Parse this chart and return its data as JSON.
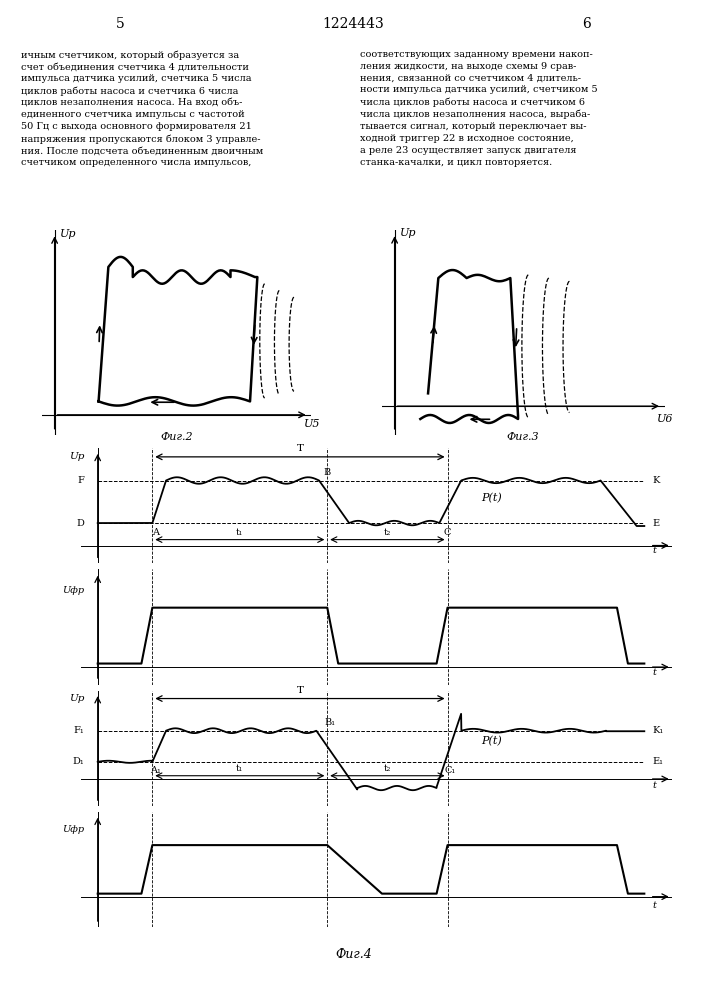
{
  "page_number_left": "5",
  "page_number_right": "6",
  "patent_number": "1224443",
  "text_left": "ичным счетчиком, который образуется за\nсчет объединения счетчика 4 длительности\nимпульса датчика усилий, счетчика 5 числа\nциклов работы насоса и счетчика 6 числа\nциклов незаполнения насоса. На вход объ-\nединенного счетчика импульсы с частотой\n50 Гц с выхода основного формирователя 21\nнапряжения пропускаются блоком 3 управле-\nния. После подсчета объединенным двоичным\nсчетчиком определенного числа импульсов,",
  "text_right": "соответствующих заданному времени накоп-\nления жидкости, на выходе схемы 9 срав-\nнения, связанной со счетчиком 4 длитель-\nности импульса датчика усилий, счетчиком 5\nчисла циклов работы насоса и счетчиком 6\nчисла циклов незаполнения насоса, выраба-\nтывается сигнал, который переключает вы-\nходной триггер 22 в исходное состояние,\nа реле 23 осуществляет запуск двигателя\nстанка-качалки, и цикл повторяется.",
  "fig2_label": "Фиг.2",
  "fig3_label": "Фиг.3",
  "fig4_label": "Фиг.4",
  "fig2_xlabel": "U5",
  "fig3_xlabel": "U6",
  "fig2_ylabel": "Up",
  "fig3_ylabel": "Up"
}
